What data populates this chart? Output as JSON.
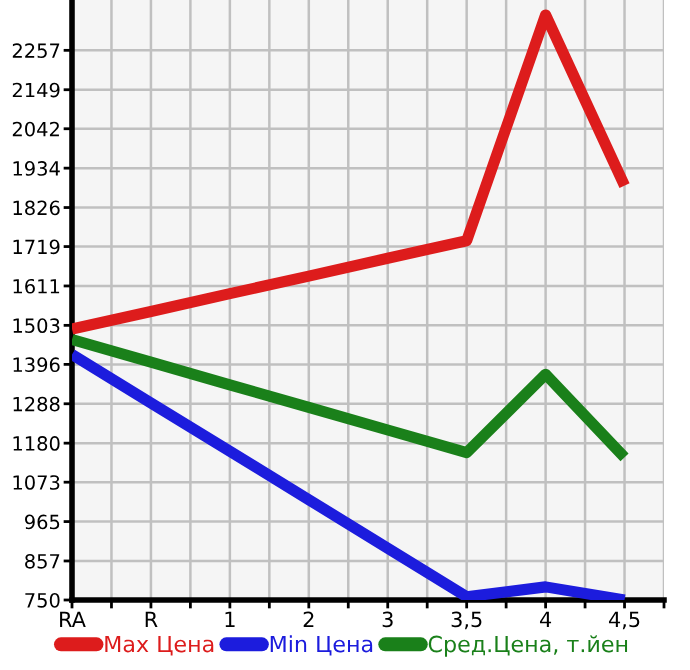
{
  "chart_data": {
    "type": "line",
    "categories": [
      "RA",
      "R",
      "1",
      "2",
      "3",
      "3,5",
      "4",
      "4,5"
    ],
    "series": [
      {
        "name": "Max Цена",
        "color": "#dd1c1c",
        "values": [
          1493,
          1541,
          1590,
          1638,
          1687,
          1735,
          2354,
          1886
        ]
      },
      {
        "name": "Min Цена",
        "color": "#1c1cdd",
        "values": [
          1423,
          1290,
          1158,
          1025,
          892,
          759,
          786,
          750
        ]
      },
      {
        "name": "Сред.Цена, т.йен",
        "color": "#1a801a",
        "values": [
          1464,
          1402,
          1340,
          1278,
          1216,
          1154,
          1369,
          1141
        ]
      }
    ],
    "ylim": [
      750,
      2395
    ],
    "yticks": [
      750,
      857,
      965,
      1073,
      1180,
      1288,
      1396,
      1503,
      1611,
      1719,
      1826,
      1934,
      2042,
      2149,
      2257
    ],
    "grid": true,
    "legend": "bottom",
    "marker": "none",
    "line_style": "solid"
  }
}
